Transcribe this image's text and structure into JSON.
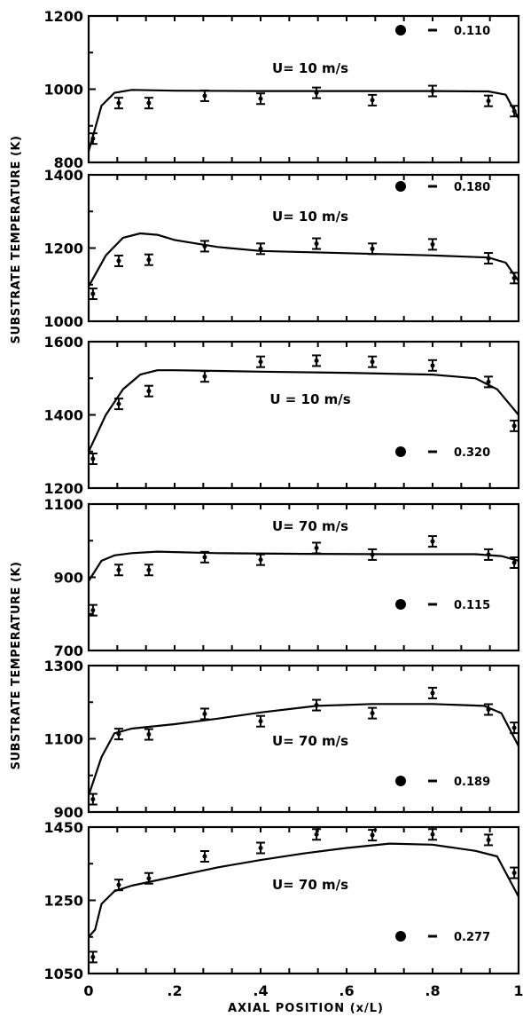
{
  "chart_data": [
    {
      "type": "scatter",
      "annotation": "U= 10 m/s",
      "legend_value": "0.110",
      "ylim": [
        800,
        1200
      ],
      "yticks": [
        "800",
        "1000",
        "1200"
      ],
      "measured": {
        "x": [
          0.01,
          0.07,
          0.14,
          0.27,
          0.4,
          0.53,
          0.66,
          0.8,
          0.93,
          0.99
        ],
        "y": [
          865,
          962,
          962,
          982,
          974,
          990,
          970,
          995,
          968,
          940
        ]
      },
      "model": {
        "x": [
          0.0,
          0.03,
          0.06,
          0.1,
          0.2,
          0.4,
          0.6,
          0.8,
          0.93,
          0.97,
          1.0
        ],
        "y": [
          830,
          955,
          990,
          998,
          996,
          995,
          995,
          995,
          994,
          985,
          920
        ]
      }
    },
    {
      "type": "scatter",
      "annotation": "U= 10 m/s",
      "legend_value": "0.180",
      "ylim": [
        1000,
        1400
      ],
      "yticks": [
        "1000",
        "1200",
        "1400"
      ],
      "measured": {
        "x": [
          0.01,
          0.07,
          0.14,
          0.27,
          0.4,
          0.53,
          0.66,
          0.8,
          0.93,
          0.99
        ],
        "y": [
          1075,
          1165,
          1168,
          1205,
          1198,
          1212,
          1198,
          1210,
          1172,
          1118
        ]
      },
      "model": {
        "x": [
          0.0,
          0.04,
          0.08,
          0.12,
          0.16,
          0.2,
          0.3,
          0.4,
          0.6,
          0.8,
          0.93,
          0.97,
          1.0
        ],
        "y": [
          1095,
          1180,
          1228,
          1240,
          1236,
          1222,
          1203,
          1192,
          1186,
          1180,
          1174,
          1160,
          1110
        ]
      }
    },
    {
      "type": "scatter",
      "annotation": "U = 10 m/s",
      "legend_value": "0.320",
      "ylim": [
        1200,
        1600
      ],
      "yticks": [
        "1200",
        "1400",
        "1600"
      ],
      "measured": {
        "x": [
          0.01,
          0.07,
          0.14,
          0.27,
          0.4,
          0.53,
          0.66,
          0.8,
          0.93,
          0.99
        ],
        "y": [
          1280,
          1430,
          1465,
          1505,
          1545,
          1548,
          1545,
          1535,
          1490,
          1370
        ]
      },
      "model": {
        "x": [
          0.0,
          0.04,
          0.08,
          0.12,
          0.16,
          0.2,
          0.4,
          0.6,
          0.8,
          0.9,
          0.95,
          1.0
        ],
        "y": [
          1300,
          1400,
          1470,
          1510,
          1522,
          1522,
          1518,
          1515,
          1510,
          1500,
          1470,
          1400
        ]
      }
    },
    {
      "type": "scatter",
      "annotation": "U= 70 m/s",
      "legend_value": "0.115",
      "ylim": [
        700,
        1100
      ],
      "yticks": [
        "700",
        "900",
        "1100"
      ],
      "measured": {
        "x": [
          0.01,
          0.07,
          0.14,
          0.27,
          0.4,
          0.53,
          0.66,
          0.8,
          0.93,
          0.99
        ],
        "y": [
          810,
          920,
          920,
          955,
          948,
          980,
          962,
          998,
          962,
          940
        ]
      },
      "model": {
        "x": [
          0.0,
          0.03,
          0.06,
          0.1,
          0.16,
          0.3,
          0.5,
          0.7,
          0.9,
          0.96,
          1.0
        ],
        "y": [
          890,
          945,
          960,
          966,
          970,
          966,
          964,
          963,
          963,
          958,
          945
        ]
      }
    },
    {
      "type": "scatter",
      "annotation": "U= 70 m/s",
      "legend_value": "0.189",
      "ylim": [
        900,
        1300
      ],
      "yticks": [
        "900",
        "1100",
        "1300"
      ],
      "measured": {
        "x": [
          0.01,
          0.07,
          0.14,
          0.27,
          0.4,
          0.53,
          0.66,
          0.8,
          0.93,
          0.99
        ],
        "y": [
          935,
          1113,
          1112,
          1168,
          1148,
          1192,
          1170,
          1225,
          1180,
          1130
        ]
      },
      "model": {
        "x": [
          0.0,
          0.03,
          0.06,
          0.1,
          0.2,
          0.3,
          0.4,
          0.53,
          0.66,
          0.8,
          0.92,
          0.96,
          1.0
        ],
        "y": [
          945,
          1050,
          1115,
          1128,
          1140,
          1155,
          1172,
          1190,
          1195,
          1195,
          1190,
          1170,
          1080
        ]
      }
    },
    {
      "type": "scatter",
      "annotation": "U= 70 m/s",
      "legend_value": "0.277",
      "ylim": [
        1050,
        1450
      ],
      "yticks": [
        "1050",
        "1250",
        "1450"
      ],
      "measured": {
        "x": [
          0.01,
          0.07,
          0.14,
          0.27,
          0.4,
          0.53,
          0.66,
          0.8,
          0.93,
          0.99
        ],
        "y": [
          1095,
          1292,
          1310,
          1370,
          1393,
          1430,
          1428,
          1430,
          1415,
          1325
        ]
      },
      "model": {
        "x": [
          0.0,
          0.015,
          0.03,
          0.06,
          0.1,
          0.2,
          0.3,
          0.4,
          0.5,
          0.6,
          0.7,
          0.8,
          0.9,
          0.95,
          1.0
        ],
        "y": [
          1150,
          1170,
          1240,
          1275,
          1290,
          1315,
          1340,
          1360,
          1378,
          1393,
          1405,
          1402,
          1385,
          1370,
          1260
        ]
      }
    }
  ],
  "xticks": [
    "0",
    ".2",
    ".4",
    ".6",
    ".8",
    "1"
  ],
  "xticks_values": [
    0,
    0.2,
    0.4,
    0.6,
    0.8,
    1.0
  ],
  "xlabel": "AXIAL POSITION (x/L)",
  "ylabel_top": "SUBSTRATE TEMPERATURE (K)",
  "ylabel_bottom": "SUBSTRATE TEMPERATURE (K)",
  "xlim": [
    0,
    1
  ]
}
